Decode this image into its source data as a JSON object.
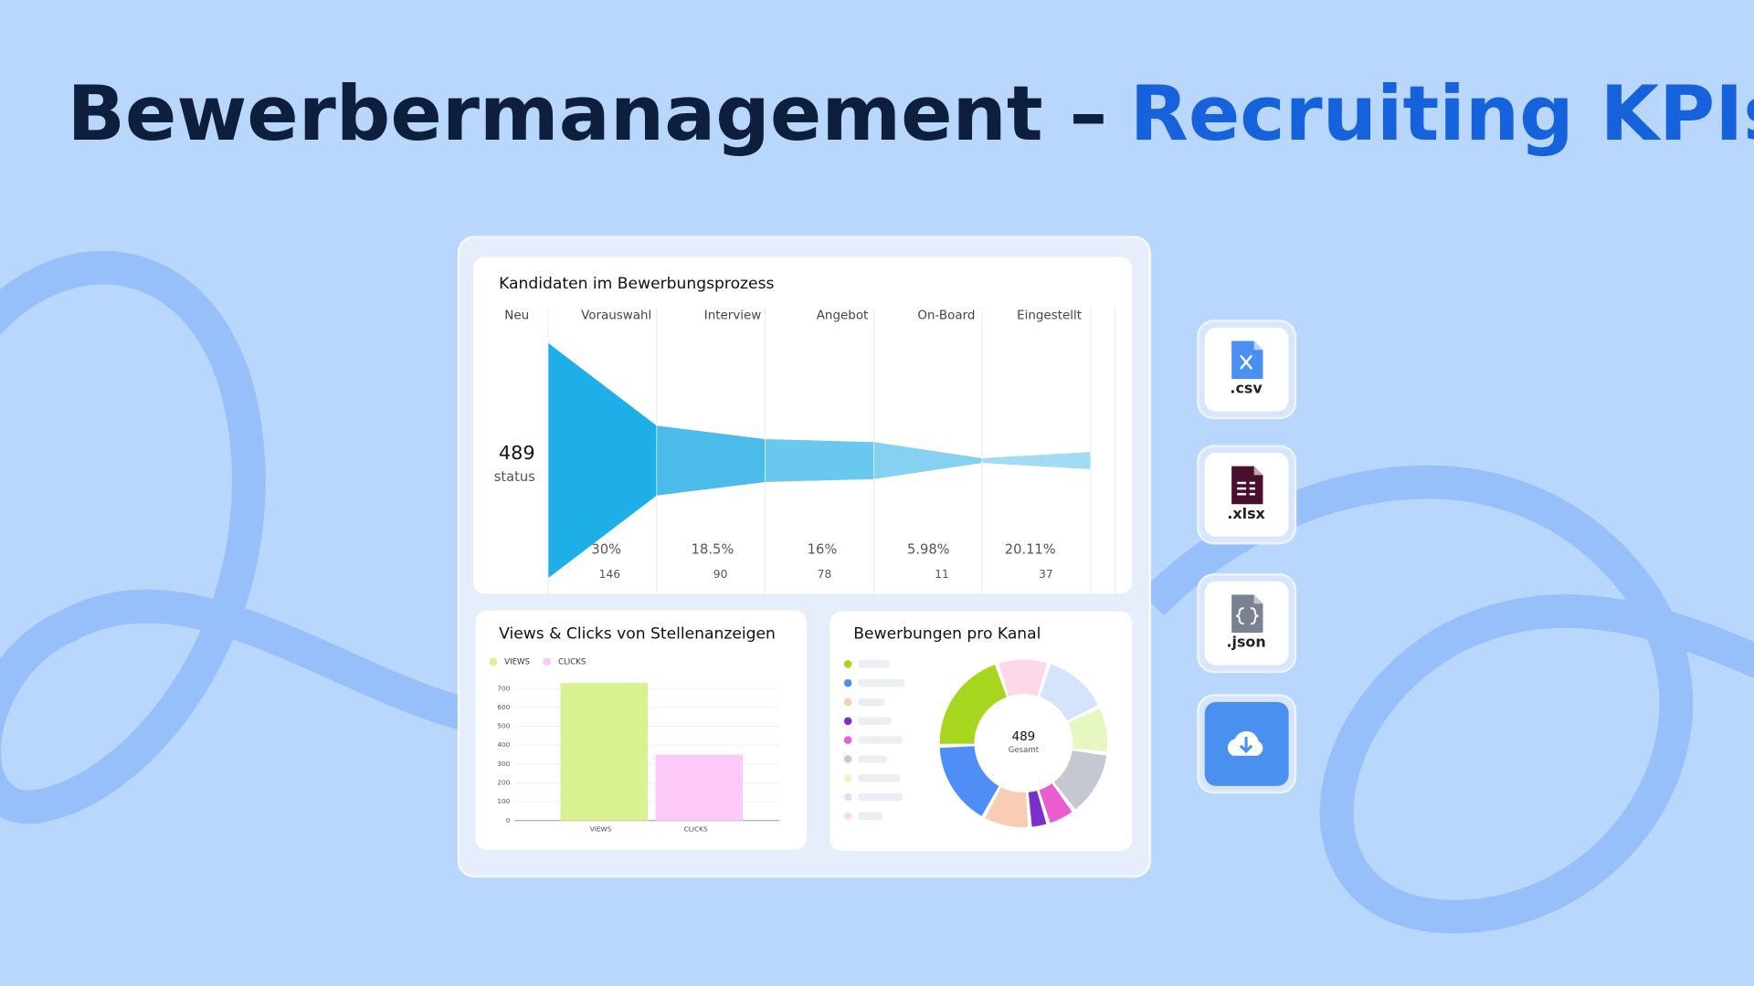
{
  "header": {
    "title_main": "Bewerbermanagement –",
    "title_highlight": "Recruiting KPIs"
  },
  "chart_data": [
    {
      "type": "funnel",
      "title": "Kandidaten im Bewerbungsprozess",
      "categories": [
        "Neu",
        "Vorauswahl",
        "Interview",
        "Angebot",
        "On-Board",
        "Eingestellt"
      ],
      "values": [
        489,
        146,
        90,
        78,
        11,
        37
      ],
      "total_label": "status",
      "percentages": [
        null,
        30,
        18.5,
        16,
        5.98,
        20.11
      ],
      "percentage_labels": [
        null,
        "30%",
        "18.5%",
        "16%",
        "5.98%",
        "20.11%"
      ],
      "colors": [
        "#1eaee8",
        "#4bbbe9",
        "#6ac7ee",
        "#86d1f1",
        "#a3dbf4"
      ]
    },
    {
      "type": "bar",
      "title": "Views & Clicks von Stellenanzeigen",
      "categories": [
        "VIEWS",
        "CLICKS"
      ],
      "values": [
        730,
        350
      ],
      "colors": [
        "#d8f291",
        "#fec8f8"
      ],
      "ylim": [
        0,
        700
      ],
      "yticks": [
        0,
        100,
        200,
        300,
        400,
        500,
        600,
        700
      ],
      "grid": true,
      "legend": "top-left"
    },
    {
      "type": "pie",
      "title": "Bewerbungen pro Kanal",
      "values": [
        21,
        17,
        9,
        3,
        5,
        13,
        9,
        13,
        10
      ],
      "colors": [
        "#a6d61e",
        "#4f8ef7",
        "#f9cdb5",
        "#7b2fc9",
        "#ea5dd0",
        "#c5c8d0",
        "#e6f7c2",
        "#d5e3fb",
        "#fcd9e8"
      ],
      "center_value": 489,
      "center_label": "Gesamt"
    }
  ],
  "export": {
    "formats": [
      ".csv",
      ".xlsx",
      ".json"
    ]
  }
}
